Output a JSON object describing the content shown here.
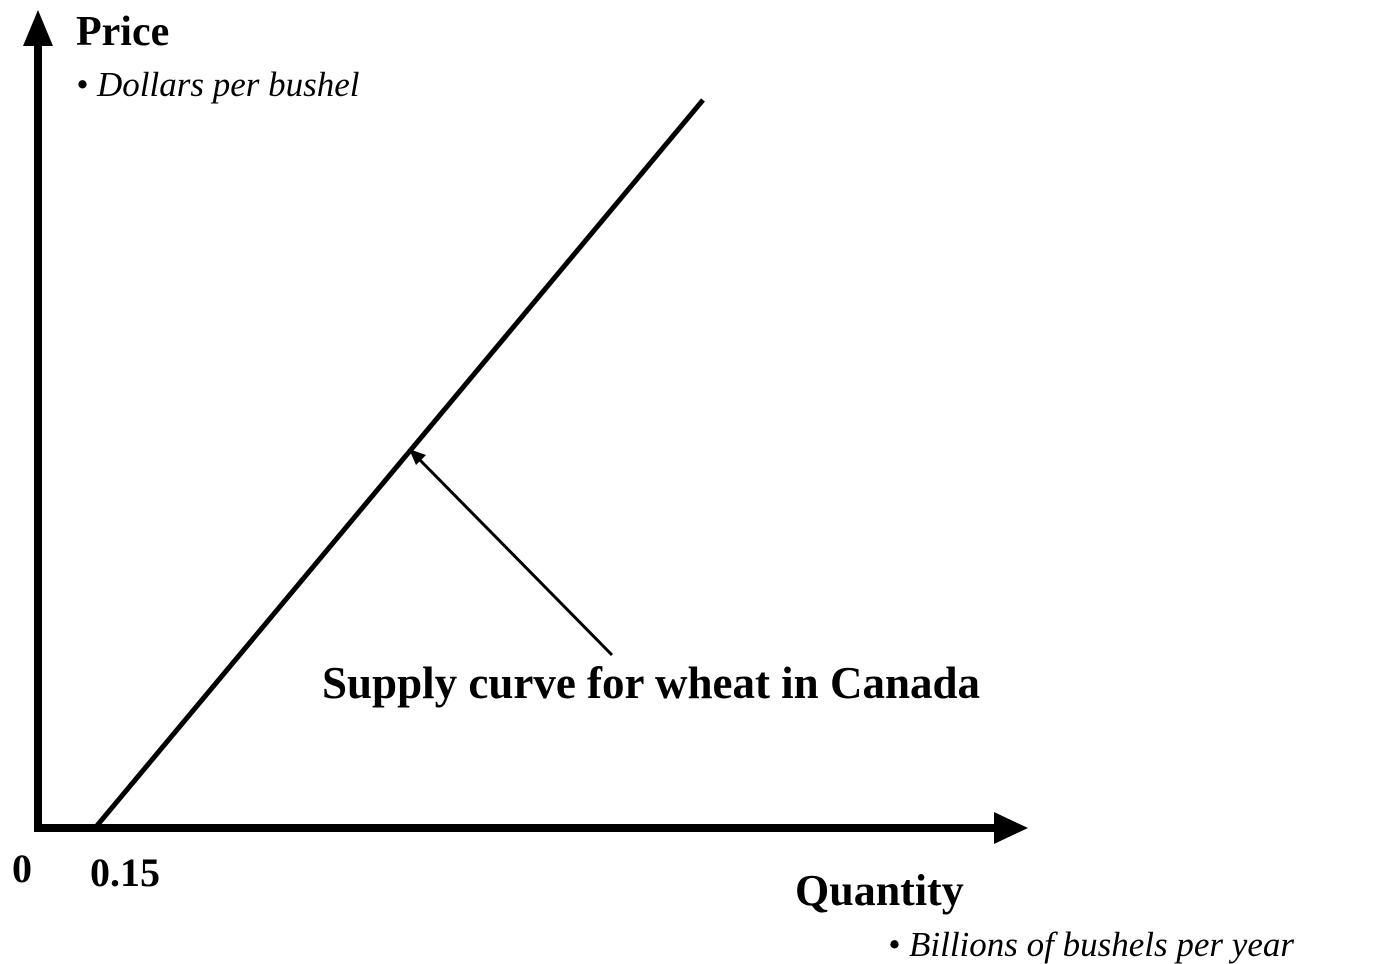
{
  "y_axis": {
    "label": "Price",
    "unit": "• Dollars per bushel"
  },
  "x_axis": {
    "label": "Quantity",
    "unit": "• Billions of bushels per year",
    "ticks": [
      "0",
      "0.15"
    ]
  },
  "annotation": "Supply curve for wheat in Canada"
}
